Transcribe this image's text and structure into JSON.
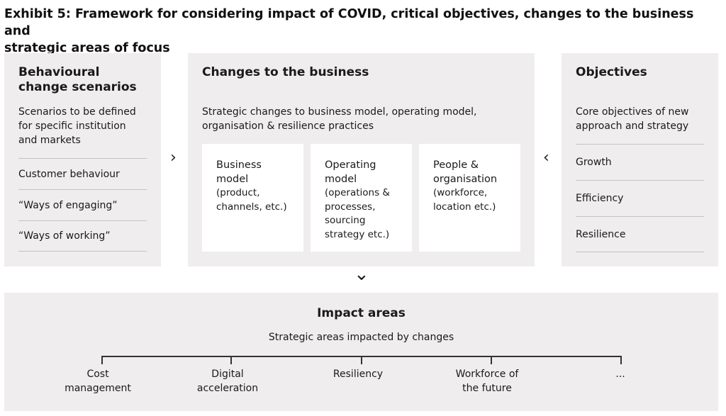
{
  "title_line1": "Exhibit 5: Framework for considering impact of COVID, critical objectives, changes to the business and",
  "title_line2": "strategic areas of focus",
  "left_panel": {
    "heading_line1": "Behavioural",
    "heading_line2": "change scenarios",
    "sub_line1": "Scenarios to be defined",
    "sub_line2": "for specific institution",
    "sub_line3": "and markets",
    "items": [
      "Customer behaviour",
      "“Ways of engaging”",
      "“Ways of working”"
    ]
  },
  "center_panel": {
    "heading": "Changes to the business",
    "sub_line1": "Strategic changes to business model, operating model,",
    "sub_line2": "organisation & resilience practices",
    "cards": [
      {
        "title_line1": "Business",
        "title_line2": "model",
        "desc_line1": "(product,",
        "desc_line2": "channels, etc.)",
        "desc_line3": "",
        "desc_line4": ""
      },
      {
        "title_line1": "Operating",
        "title_line2": "model",
        "desc_line1": "(operations &",
        "desc_line2": "processes,",
        "desc_line3": "sourcing",
        "desc_line4": "strategy etc.)"
      },
      {
        "title_line1": "People &",
        "title_line2": "organisation",
        "desc_line1": "(workforce,",
        "desc_line2": "location etc.)",
        "desc_line3": "",
        "desc_line4": ""
      }
    ]
  },
  "right_panel": {
    "heading": "Objectives",
    "sub_line1": "Core objectives of new",
    "sub_line2": "approach and strategy",
    "items": [
      "Growth",
      "Efficiency",
      "Resilience"
    ]
  },
  "bottom_panel": {
    "heading": "Impact areas",
    "sub": "Strategic areas impacted by changes",
    "areas": [
      {
        "line1": "Cost",
        "line2": "management"
      },
      {
        "line1": "Digital",
        "line2": "acceleration"
      },
      {
        "line1": "Resiliency",
        "line2": ""
      },
      {
        "line1": "Workforce of",
        "line2": "the future"
      },
      {
        "line1": "...",
        "line2": ""
      }
    ]
  },
  "arrows": {
    "left_to_center": "›",
    "right_to_center": "‹",
    "down": "⌄"
  }
}
